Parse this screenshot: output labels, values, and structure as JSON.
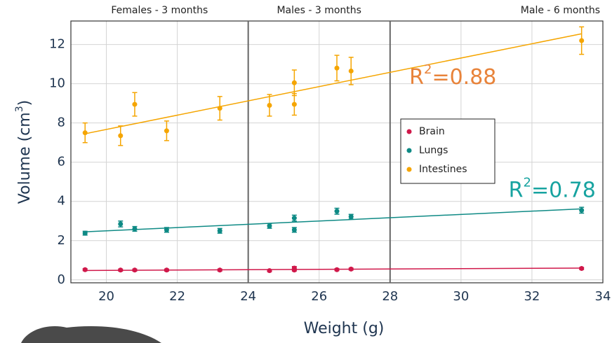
{
  "chart_data": {
    "type": "scatter",
    "x_label": "Weight (g)",
    "y_label_parts": [
      "Volume (cm",
      "3",
      ")"
    ],
    "group_labels": [
      "Females - 3 months",
      "Males - 3 months",
      "Male - 6 months"
    ],
    "dividers": [
      24,
      28
    ],
    "xlim": [
      19,
      34
    ],
    "xticks": [
      20,
      22,
      24,
      26,
      28,
      30,
      32,
      34
    ],
    "ylim": [
      -0.15,
      13.2
    ],
    "yticks": [
      0,
      2,
      4,
      6,
      8,
      10,
      12
    ],
    "grid": true,
    "legend": "center-right",
    "x": [
      19.4,
      20.4,
      20.8,
      21.7,
      23.2,
      24.6,
      25.3,
      25.3,
      26.5,
      26.9,
      33.4
    ],
    "series": [
      {
        "name": "Brain",
        "color": "#d0184a",
        "values": [
          0.52,
          0.5,
          0.5,
          0.5,
          0.5,
          0.47,
          0.6,
          0.5,
          0.52,
          0.55,
          0.58
        ],
        "errors": [
          0.05,
          0.05,
          0.05,
          0.05,
          0.05,
          0.05,
          0.08,
          0.05,
          0.05,
          0.05,
          0.05
        ],
        "fit_x": [
          19.4,
          33.4
        ],
        "fit_values": [
          0.48,
          0.6
        ]
      },
      {
        "name": "Lungs",
        "color": "#0e8a85",
        "values": [
          2.38,
          2.85,
          2.6,
          2.55,
          2.5,
          2.75,
          3.15,
          2.55,
          3.5,
          3.22,
          3.55
        ],
        "errors": [
          0.1,
          0.15,
          0.12,
          0.12,
          0.12,
          0.12,
          0.15,
          0.12,
          0.15,
          0.12,
          0.15
        ],
        "fit_x": [
          19.4,
          33.4
        ],
        "fit_values": [
          2.45,
          3.62
        ],
        "r2_label": [
          "R",
          "2",
          "=0.78"
        ],
        "r2_color": "#17a3a0",
        "r2_at": [
          33.8,
          4.55
        ]
      },
      {
        "name": "Intestines",
        "color": "#f5a500",
        "values": [
          7.5,
          7.35,
          8.95,
          7.6,
          8.75,
          8.9,
          10.05,
          8.95,
          10.8,
          10.65,
          12.2
        ],
        "errors": [
          0.5,
          0.5,
          0.6,
          0.5,
          0.6,
          0.55,
          0.65,
          0.55,
          0.65,
          0.7,
          0.7
        ],
        "fit_x": [
          19.4,
          33.4
        ],
        "fit_values": [
          7.45,
          12.55
        ],
        "r2_label": [
          "R",
          "2",
          "=0.88"
        ],
        "r2_color": "#e8833a",
        "r2_at": [
          31.0,
          10.3
        ]
      }
    ]
  }
}
